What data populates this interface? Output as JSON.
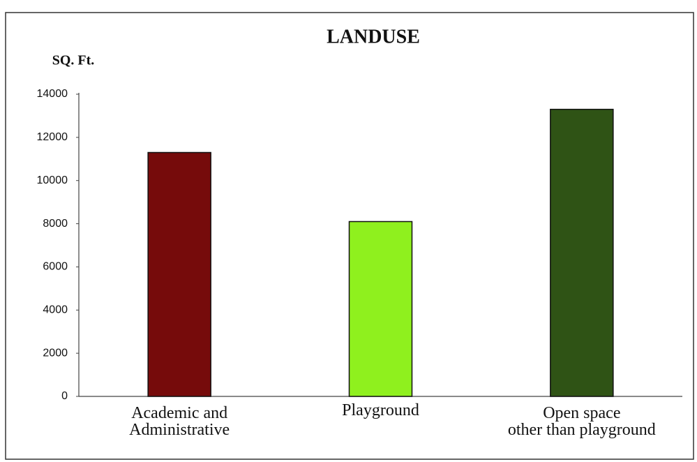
{
  "chart_data": {
    "type": "bar",
    "title": "LANDUSE",
    "y_label": "SQ. Ft.",
    "categories": [
      "Academic and\nAdministrative",
      "Playground",
      "Open space\nother than playground"
    ],
    "values": [
      11300,
      8100,
      13300
    ],
    "colors": [
      "#760b0b",
      "#8ff01e",
      "#2f5315"
    ],
    "ylim": [
      0,
      14000
    ],
    "yticks": [
      0,
      2000,
      4000,
      6000,
      8000,
      10000,
      12000,
      14000
    ],
    "grid": false
  }
}
